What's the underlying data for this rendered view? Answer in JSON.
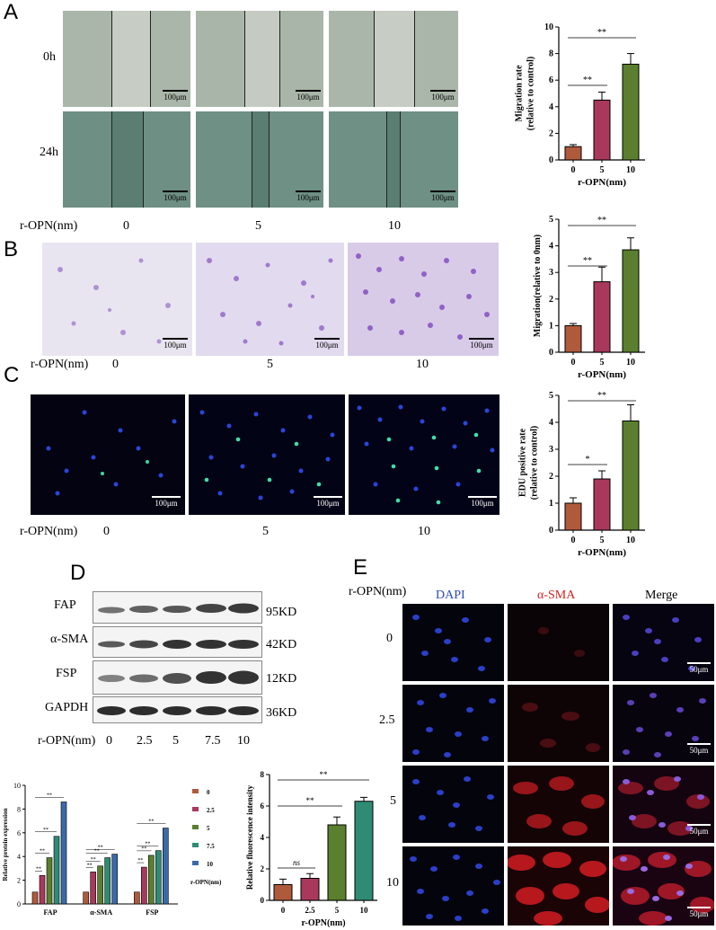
{
  "panels": {
    "A": {
      "label": "A",
      "rows": [
        "0h",
        "24h"
      ],
      "opn_label": "r-OPN(nm)",
      "doses": [
        "0",
        "5",
        "10"
      ],
      "scale": "100μm"
    },
    "B": {
      "label": "B",
      "opn_label": "r-OPN(nm)",
      "doses": [
        "0",
        "5",
        "10"
      ],
      "scale": "100μm"
    },
    "C": {
      "label": "C",
      "opn_label": "r-OPN(nm)",
      "doses": [
        "0",
        "5",
        "10"
      ],
      "scale": "100μm"
    },
    "D": {
      "label": "D",
      "proteins": [
        "FAP",
        "α-SMA",
        "FSP",
        "GAPDH"
      ],
      "weights": [
        "95KD",
        "42KD",
        "12KD",
        "36KD"
      ],
      "opn_label": "r-OPN(nm)",
      "doses": [
        "0",
        "2.5",
        "5",
        "7.5",
        "10"
      ]
    },
    "E": {
      "label": "E",
      "opn_label": "r-OPN(nm)",
      "columns": [
        "DAPI",
        "α-SMA",
        "Merge"
      ],
      "rows": [
        "0",
        "2.5",
        "5",
        "10"
      ],
      "scale": "50μm"
    }
  },
  "colors": {
    "bar_brown": "#b05a3c",
    "bar_crimson": "#a8395c",
    "bar_green": "#5a7f2e",
    "bar_teal": "#2e8b74",
    "bar_blue": "#3b6aa8",
    "dapi_label": "#2b4bbf",
    "sma_label": "#d42020"
  },
  "chart_data": [
    {
      "id": "A",
      "type": "bar",
      "categories": [
        "0",
        "5",
        "10"
      ],
      "values": [
        1.0,
        4.5,
        7.2
      ],
      "errors": [
        0.15,
        0.6,
        0.8
      ],
      "xlabel": "r-OPN(nm)",
      "ylabel": "Migration rate\n(relative to control)",
      "ylim": [
        0,
        10
      ],
      "yticks": [
        "0",
        "2",
        "4",
        "6",
        "8",
        "10"
      ],
      "significance": [
        {
          "pair": [
            "0",
            "5"
          ],
          "label": "**"
        },
        {
          "pair": [
            "0",
            "10"
          ],
          "label": "**"
        }
      ]
    },
    {
      "id": "B",
      "type": "bar",
      "categories": [
        "0",
        "5",
        "10"
      ],
      "values": [
        1.0,
        2.65,
        3.85
      ],
      "errors": [
        0.08,
        0.55,
        0.45
      ],
      "xlabel": "r-OPN(nm)",
      "ylabel": "Migration(relative to 0nm)",
      "ylim": [
        0,
        5
      ],
      "yticks": [
        "0",
        "1",
        "2",
        "3",
        "4",
        "5"
      ],
      "significance": [
        {
          "pair": [
            "0",
            "5"
          ],
          "label": "**"
        },
        {
          "pair": [
            "0",
            "10"
          ],
          "label": "**"
        }
      ]
    },
    {
      "id": "C",
      "type": "bar",
      "categories": [
        "0",
        "5",
        "10"
      ],
      "values": [
        1.0,
        1.9,
        4.05
      ],
      "errors": [
        0.2,
        0.3,
        0.6
      ],
      "xlabel": "r-OPN(nm)",
      "ylabel": "EDU positive rate\n(relative to control)",
      "ylim": [
        0,
        5
      ],
      "yticks": [
        "0",
        "1",
        "2",
        "3",
        "4",
        "5"
      ],
      "significance": [
        {
          "pair": [
            "0",
            "5"
          ],
          "label": "*"
        },
        {
          "pair": [
            "0",
            "10"
          ],
          "label": "**"
        }
      ]
    },
    {
      "id": "D",
      "type": "bar",
      "categories": [
        "FAP",
        "α-SMA",
        "FSP"
      ],
      "series": [
        {
          "name": "0",
          "values": [
            1.0,
            1.0,
            1.0
          ]
        },
        {
          "name": "2.5",
          "values": [
            2.4,
            2.7,
            3.1
          ]
        },
        {
          "name": "5",
          "values": [
            3.9,
            3.2,
            4.1
          ]
        },
        {
          "name": "7.5",
          "values": [
            5.7,
            3.9,
            4.5
          ]
        },
        {
          "name": "10",
          "values": [
            8.6,
            4.2,
            6.4
          ]
        }
      ],
      "ylabel": "Relative protein expression",
      "ylim": [
        0,
        10
      ],
      "yticks": [
        "0",
        "2",
        "4",
        "6",
        "8",
        "10"
      ],
      "legend_title": "r-OPN(nm)",
      "significance_label": "**"
    },
    {
      "id": "E",
      "type": "bar",
      "categories": [
        "0",
        "2.5",
        "5",
        "10"
      ],
      "values": [
        1.0,
        1.4,
        4.8,
        6.3
      ],
      "errors": [
        0.35,
        0.3,
        0.5,
        0.25
      ],
      "xlabel": "r-OPN(nm)",
      "ylabel": "Relative fluorescence intensity",
      "ylim": [
        0,
        8
      ],
      "yticks": [
        "0",
        "2",
        "4",
        "6",
        "8"
      ],
      "significance": [
        {
          "pair": [
            "0",
            "2.5"
          ],
          "label": "ns"
        },
        {
          "pair": [
            "0",
            "5"
          ],
          "label": "**"
        },
        {
          "pair": [
            "0",
            "10"
          ],
          "label": "**"
        }
      ]
    }
  ]
}
